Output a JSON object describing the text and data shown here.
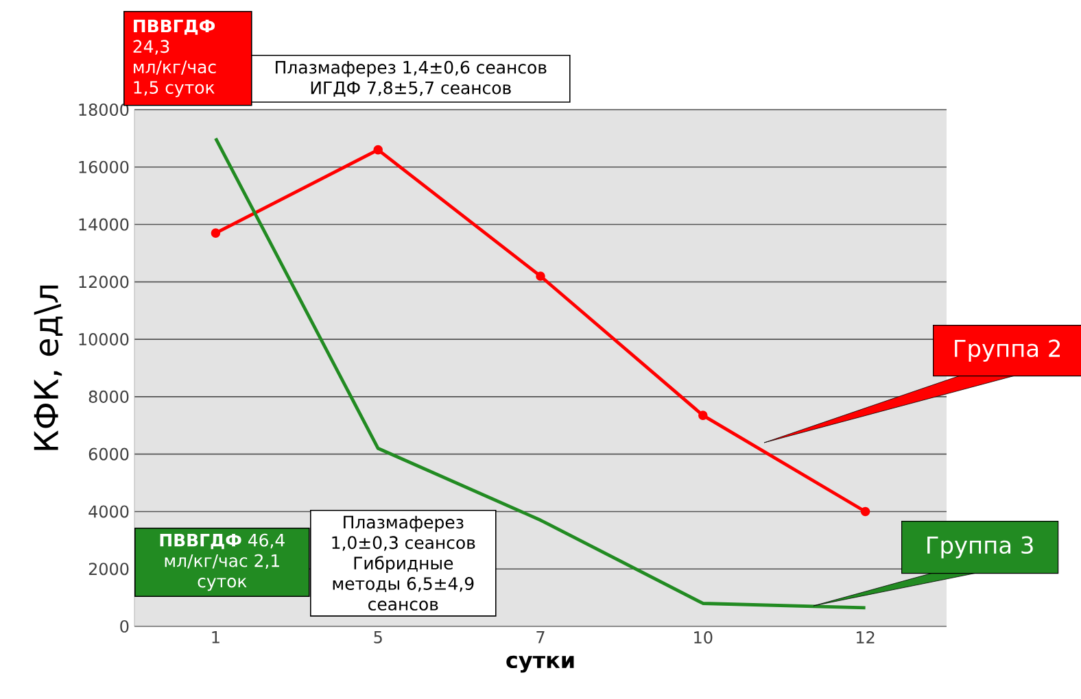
{
  "chart_data": {
    "type": "line",
    "xlabel": "сутки",
    "ylabel": "КФК, ед\\л",
    "categories": [
      "1",
      "5",
      "7",
      "10",
      "12"
    ],
    "series": [
      {
        "name": "Группа 2",
        "color": "#ff0000",
        "marker": "circle",
        "values": [
          13700,
          16600,
          12200,
          7350,
          4000
        ]
      },
      {
        "name": "Группа 3",
        "color": "#228b22",
        "marker": "none",
        "values": [
          17000,
          6200,
          3700,
          800,
          650
        ]
      }
    ],
    "ylim": [
      0,
      18000
    ],
    "yticks": [
      0,
      2000,
      4000,
      6000,
      8000,
      10000,
      12000,
      14000,
      16000,
      18000
    ],
    "grid": "y",
    "legend": false,
    "annotations": [
      "**ПВВГДФ** 24,3 мл/кг/час 1,5 суток",
      "Плазмаферез 1,4±0,6 сеансов ИГДФ 7,8±5,7 сеансов",
      "**ПВВГДФ** 46,4 мл/кг/час 2,1 суток",
      "Плазмаферез 1,0±0,3 сеансов Гибридные методы 6,5±4,9 сеансов"
    ]
  }
}
